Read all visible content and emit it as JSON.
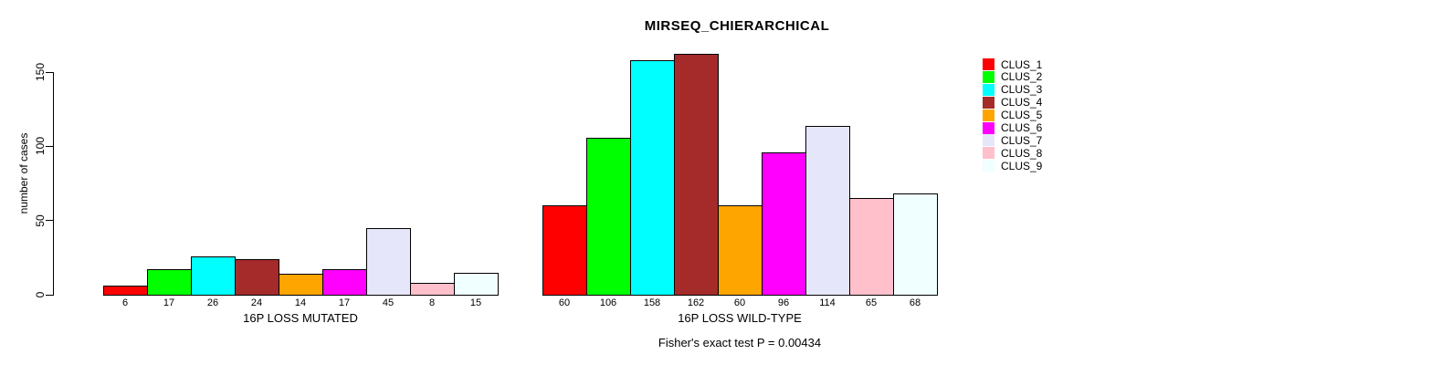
{
  "chart_data": {
    "type": "bar",
    "title": "MIRSEQ_CHIERARCHICAL",
    "ylabel": "number of cases",
    "yticks": [
      0,
      50,
      100,
      150
    ],
    "ylim": [
      0,
      162
    ],
    "grid": false,
    "legend_position": "right",
    "series_names": [
      "CLUS_1",
      "CLUS_2",
      "CLUS_3",
      "CLUS_4",
      "CLUS_5",
      "CLUS_6",
      "CLUS_7",
      "CLUS_8",
      "CLUS_9"
    ],
    "colors": [
      "#FF0000",
      "#00FF00",
      "#00FFFF",
      "#A52A2A",
      "#FFA500",
      "#FF00FF",
      "#E6E6FA",
      "#FFC0CB",
      "#F0FFFF"
    ],
    "groups": [
      {
        "label": "16P LOSS MUTATED",
        "values": [
          6,
          17,
          26,
          24,
          14,
          17,
          45,
          8,
          15
        ]
      },
      {
        "label": "16P LOSS WILD-TYPE",
        "values": [
          60,
          106,
          158,
          162,
          60,
          96,
          114,
          65,
          68
        ]
      }
    ],
    "annotation": "Fisher's exact test P = 0.00434"
  }
}
